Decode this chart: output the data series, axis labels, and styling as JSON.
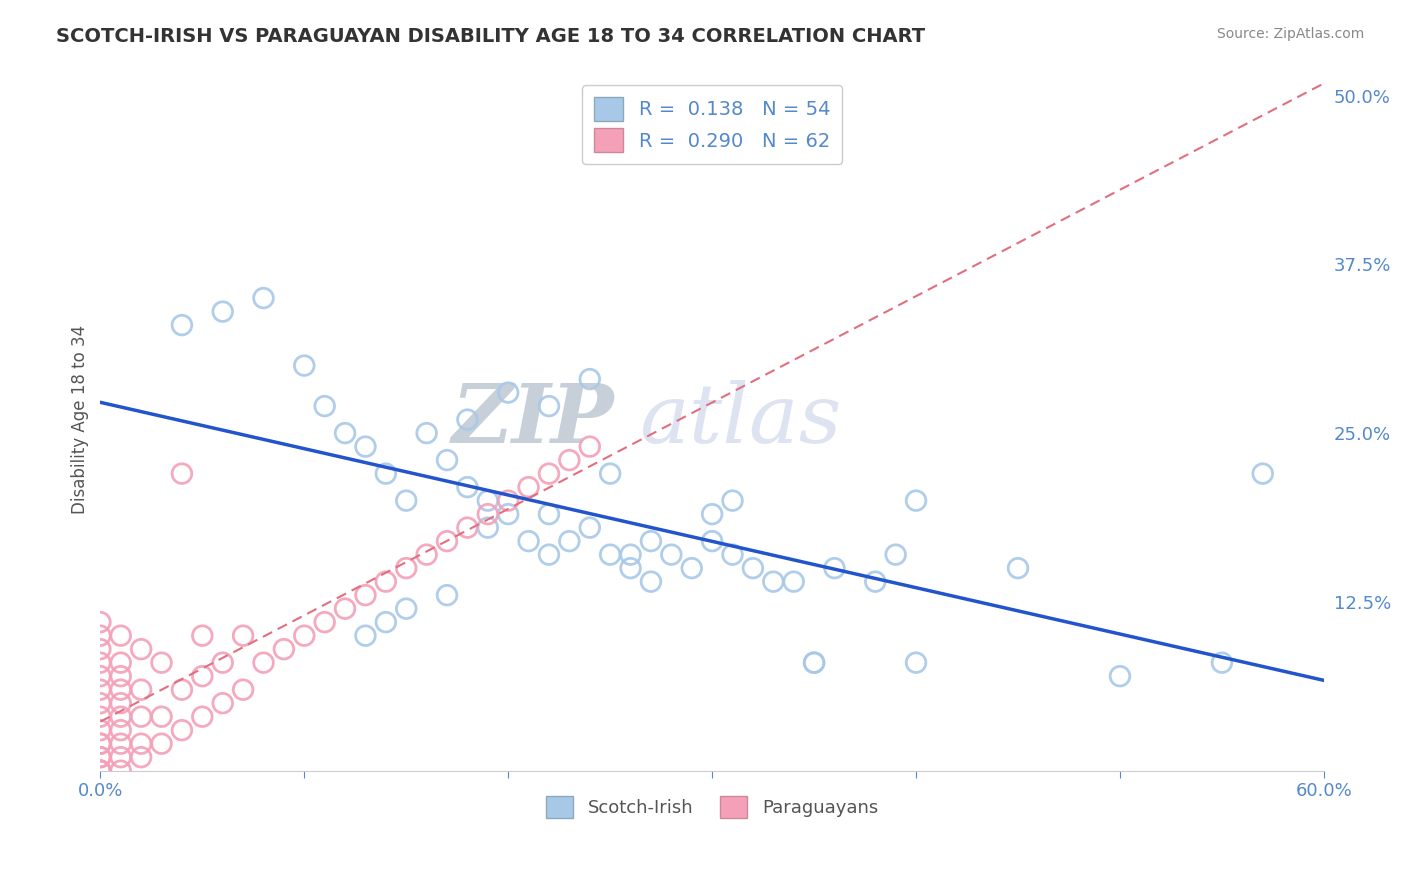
{
  "title": "SCOTCH-IRISH VS PARAGUAYAN DISABILITY AGE 18 TO 34 CORRELATION CHART",
  "source": "Source: ZipAtlas.com",
  "ylabel": "Disability Age 18 to 34",
  "xlim": [
    0.0,
    0.6
  ],
  "ylim": [
    0.0,
    0.52
  ],
  "ytick_right_labels": [
    "50.0%",
    "37.5%",
    "25.0%",
    "12.5%"
  ],
  "ytick_right_values": [
    0.5,
    0.375,
    0.25,
    0.125
  ],
  "scotch_irish_R": 0.138,
  "scotch_irish_N": 54,
  "paraguayan_R": 0.29,
  "paraguayan_N": 62,
  "scotch_irish_color": "#a8c8e8",
  "paraguayan_color": "#f4a0b8",
  "scotch_irish_line_color": "#2255cc",
  "paraguayan_line_color": "#e07080",
  "grid_color": "#cccccc",
  "background_color": "#ffffff",
  "scotch_irish_x": [
    0.04,
    0.06,
    0.08,
    0.1,
    0.11,
    0.12,
    0.13,
    0.14,
    0.15,
    0.16,
    0.17,
    0.18,
    0.19,
    0.19,
    0.2,
    0.21,
    0.22,
    0.22,
    0.23,
    0.24,
    0.25,
    0.26,
    0.27,
    0.27,
    0.28,
    0.29,
    0.3,
    0.31,
    0.32,
    0.33,
    0.34,
    0.35,
    0.36,
    0.38,
    0.39,
    0.4,
    0.18,
    0.2,
    0.22,
    0.24,
    0.25,
    0.26,
    0.3,
    0.31,
    0.35,
    0.4,
    0.45,
    0.5,
    0.55,
    0.57,
    0.13,
    0.14,
    0.15,
    0.17
  ],
  "scotch_irish_y": [
    0.33,
    0.34,
    0.35,
    0.3,
    0.27,
    0.25,
    0.24,
    0.22,
    0.2,
    0.25,
    0.23,
    0.21,
    0.2,
    0.18,
    0.19,
    0.17,
    0.19,
    0.16,
    0.17,
    0.18,
    0.16,
    0.15,
    0.17,
    0.14,
    0.16,
    0.15,
    0.17,
    0.16,
    0.15,
    0.14,
    0.14,
    0.08,
    0.15,
    0.14,
    0.16,
    0.2,
    0.26,
    0.28,
    0.27,
    0.29,
    0.22,
    0.16,
    0.19,
    0.2,
    0.08,
    0.08,
    0.15,
    0.07,
    0.08,
    0.22,
    0.1,
    0.11,
    0.12,
    0.13
  ],
  "paraguayan_x": [
    0.0,
    0.0,
    0.0,
    0.0,
    0.0,
    0.0,
    0.0,
    0.0,
    0.0,
    0.0,
    0.0,
    0.0,
    0.0,
    0.0,
    0.0,
    0.0,
    0.0,
    0.01,
    0.01,
    0.01,
    0.01,
    0.01,
    0.01,
    0.01,
    0.01,
    0.01,
    0.01,
    0.02,
    0.02,
    0.02,
    0.02,
    0.02,
    0.03,
    0.03,
    0.03,
    0.04,
    0.04,
    0.04,
    0.05,
    0.05,
    0.05,
    0.06,
    0.06,
    0.07,
    0.07,
    0.08,
    0.09,
    0.1,
    0.11,
    0.12,
    0.13,
    0.14,
    0.15,
    0.16,
    0.17,
    0.18,
    0.19,
    0.2,
    0.21,
    0.22,
    0.23,
    0.24
  ],
  "paraguayan_y": [
    0.0,
    0.0,
    0.0,
    0.0,
    0.01,
    0.01,
    0.02,
    0.02,
    0.03,
    0.04,
    0.05,
    0.06,
    0.07,
    0.08,
    0.09,
    0.1,
    0.11,
    0.0,
    0.01,
    0.02,
    0.03,
    0.04,
    0.05,
    0.06,
    0.07,
    0.08,
    0.1,
    0.01,
    0.02,
    0.04,
    0.06,
    0.09,
    0.02,
    0.04,
    0.08,
    0.03,
    0.06,
    0.22,
    0.04,
    0.07,
    0.1,
    0.05,
    0.08,
    0.06,
    0.1,
    0.08,
    0.09,
    0.1,
    0.11,
    0.12,
    0.13,
    0.14,
    0.15,
    0.16,
    0.17,
    0.18,
    0.19,
    0.2,
    0.21,
    0.22,
    0.23,
    0.24
  ],
  "watermark_zip": "ZIP",
  "watermark_atlas": "atlas",
  "legend_scotch_label": "Scotch-Irish",
  "legend_paraguayan_label": "Paraguayans"
}
